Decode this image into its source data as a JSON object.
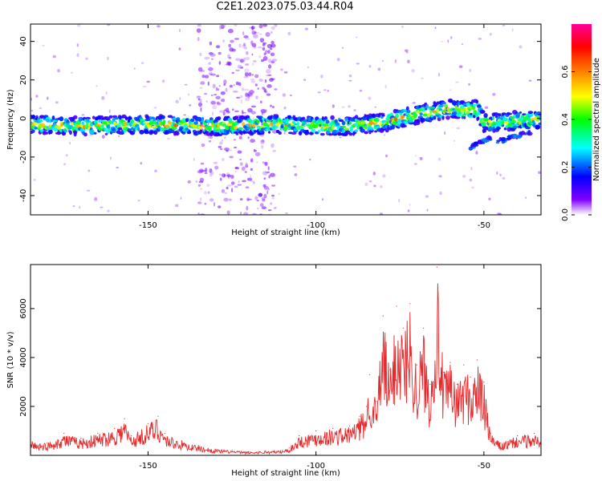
{
  "title": "C2E1.2023.075.03.44.R04",
  "chart_data": [
    {
      "type": "heatmap",
      "xlabel": "Height of straight line (km)",
      "ylabel": "Frequency (Hz)",
      "xlim": [
        -185,
        -33
      ],
      "ylim": [
        -50,
        49
      ],
      "xticks": [
        -150,
        -100,
        -50
      ],
      "yticks": [
        -40,
        -20,
        0,
        20,
        40
      ],
      "grid": false,
      "colorbar": {
        "label": "Normalized spectral amplitude",
        "range": [
          0.0,
          0.8
        ],
        "ticks": [
          0.0,
          0.2,
          0.4,
          0.6
        ],
        "colormap": [
          "#ffffff",
          "#7f00ff",
          "#0000ff",
          "#00ffff",
          "#00ff00",
          "#ffff00",
          "#ff8000",
          "#ff0000",
          "#ff00aa"
        ]
      },
      "ridge": {
        "x": [
          -185,
          -170,
          -150,
          -130,
          -110,
          -100,
          -90,
          -80,
          -70,
          -60,
          -55,
          -52,
          -50,
          -45,
          -40,
          -35,
          -33
        ],
        "y": [
          -3,
          -4,
          -3,
          -4,
          -3,
          -4,
          -4,
          -2,
          2,
          5,
          4,
          5,
          -2,
          -2,
          -1,
          -1,
          -1
        ]
      },
      "broadband_region": {
        "x": [
          -135,
          -112
        ],
        "y": [
          -50,
          49
        ]
      },
      "branches": [
        {
          "x": [
            -54,
            -48
          ],
          "y": [
            -15,
            -10
          ]
        },
        {
          "x": [
            -46,
            -36
          ],
          "y": [
            -12,
            -7
          ]
        }
      ]
    },
    {
      "type": "line",
      "xlabel": "Height of straight line (km)",
      "ylabel": "SNR (10 * v/v)",
      "xlim": [
        -185,
        -33
      ],
      "ylim": [
        0,
        7800
      ],
      "xticks": [
        -150,
        -100,
        -50
      ],
      "yticks": [
        2000,
        4000,
        6000
      ],
      "grid": false,
      "series": [
        {
          "color": "#e8282a",
          "x": [
            -185,
            -180,
            -175,
            -170,
            -165,
            -160,
            -157,
            -155,
            -150,
            -147,
            -145,
            -140,
            -135,
            -130,
            -125,
            -120,
            -115,
            -110,
            -108,
            -105,
            -100,
            -95,
            -90,
            -87,
            -85,
            -84,
            -82,
            -80,
            -78,
            -76,
            -74,
            -72,
            -70,
            -68,
            -66,
            -64,
            -62,
            -60,
            -58,
            -56,
            -54,
            -52,
            -50,
            -48,
            -45,
            -40,
            -35,
            -33
          ],
          "values": [
            600,
            500,
            900,
            700,
            900,
            1100,
            1500,
            800,
            1300,
            1600,
            900,
            600,
            400,
            250,
            200,
            150,
            180,
            200,
            300,
            800,
            1000,
            1100,
            1200,
            1600,
            2000,
            3300,
            2200,
            5700,
            3500,
            6100,
            5200,
            6200,
            3700,
            5200,
            2900,
            7700,
            3400,
            3800,
            2900,
            3700,
            3200,
            3900,
            3000,
            900,
            500,
            800,
            900,
            700
          ]
        }
      ]
    }
  ]
}
